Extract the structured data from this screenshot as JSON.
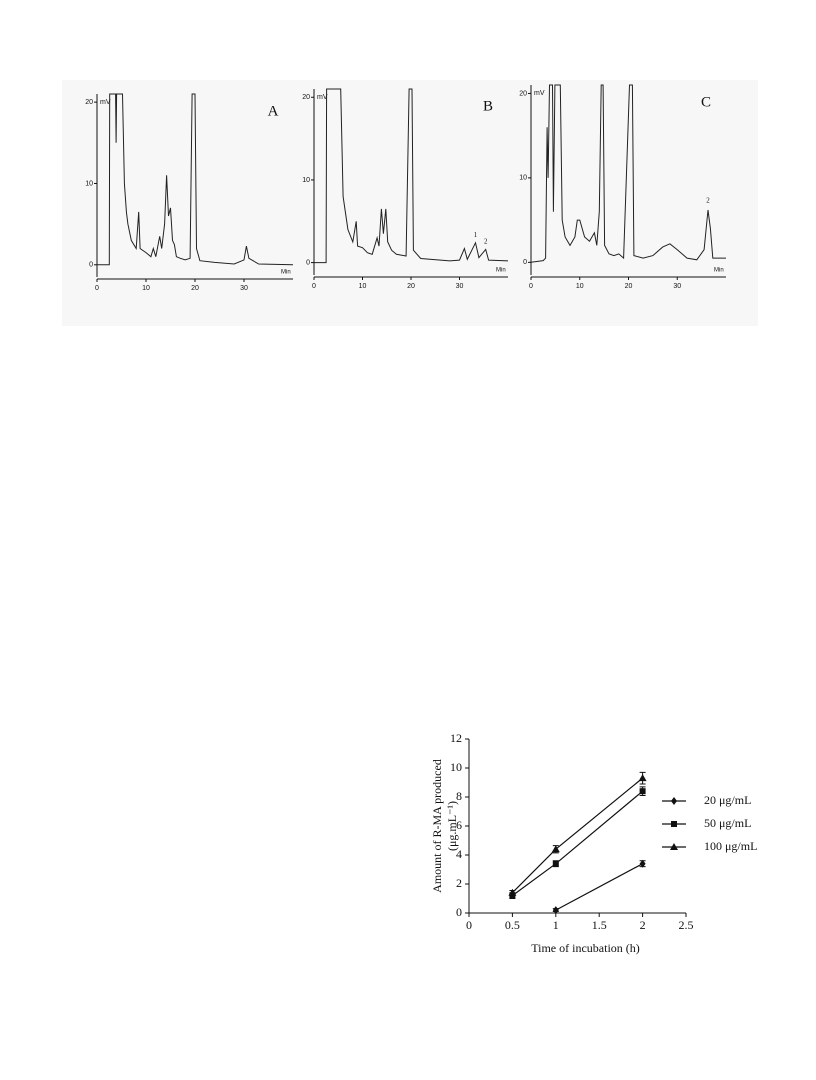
{
  "chart_data": [
    {
      "type": "chromatogram",
      "label": "A",
      "x_label": "Min",
      "y_label": "mV",
      "xlim": [
        0,
        40
      ],
      "ylim": [
        -1.5,
        21
      ],
      "xticks": [
        0,
        10,
        20,
        30
      ],
      "yticks": [
        0,
        10,
        20
      ],
      "color": "#222222",
      "x": [
        0,
        2.5,
        2.6,
        3.8,
        3.9,
        4.0,
        5.2,
        5.6,
        6,
        6.3,
        7,
        8,
        8.5,
        8.8,
        10,
        11,
        11.5,
        12,
        12.8,
        13.2,
        13.8,
        14.2,
        14.6,
        15,
        15.4,
        15.8,
        16.2,
        17,
        18,
        19,
        19.4,
        20,
        20.3,
        21,
        24,
        28,
        30,
        30.5,
        31,
        33,
        40
      ],
      "values": [
        0,
        0,
        21,
        21,
        15,
        21,
        21,
        10,
        6.5,
        5,
        3,
        2,
        6.5,
        2,
        1.5,
        1,
        2,
        1,
        3.5,
        2,
        5,
        11,
        6,
        7,
        3,
        2.5,
        1,
        0.8,
        0.6,
        0.8,
        21,
        21,
        2,
        0.5,
        0.3,
        0.1,
        0.6,
        2.3,
        0.8,
        0.1,
        0
      ],
      "annotations": []
    },
    {
      "type": "chromatogram",
      "label": "B",
      "x_label": "Min",
      "y_label": "mV",
      "xlim": [
        0,
        40
      ],
      "ylim": [
        -1.5,
        21
      ],
      "xticks": [
        0,
        10,
        20,
        30
      ],
      "yticks": [
        0,
        10,
        20
      ],
      "color": "#222222",
      "x": [
        0,
        2.5,
        2.6,
        4.4,
        4.6,
        5.5,
        6,
        6.5,
        7,
        8,
        8.7,
        9,
        10,
        11,
        12,
        13,
        13.4,
        13.9,
        14.3,
        14.8,
        15.2,
        16,
        17,
        19,
        19.6,
        20.2,
        20.5,
        22,
        28,
        30,
        31,
        31.6,
        33.3,
        34,
        35.4,
        36,
        40
      ],
      "values": [
        0,
        0,
        21,
        21,
        21,
        21,
        8,
        6,
        4,
        2.5,
        5,
        2,
        1.8,
        1.2,
        1,
        3,
        2,
        6.5,
        3.5,
        6.5,
        2.5,
        1.5,
        1,
        0.8,
        21,
        21,
        1.5,
        0.5,
        0.2,
        0.3,
        1.7,
        0.4,
        2.4,
        0.6,
        1.6,
        0.3,
        0.2
      ],
      "annotations": [
        {
          "text": "1",
          "x": 33.3,
          "y": 3.3
        },
        {
          "text": "2",
          "x": 35.4,
          "y": 2.5
        }
      ]
    },
    {
      "type": "chromatogram",
      "label": "C",
      "x_label": "Min",
      "y_label": "mV",
      "xlim": [
        0,
        40
      ],
      "ylim": [
        -1.5,
        21
      ],
      "xticks": [
        0,
        10,
        20,
        30
      ],
      "yticks": [
        0,
        10,
        20
      ],
      "color": "#222222",
      "x": [
        0,
        2.5,
        3,
        3.3,
        3.5,
        3.8,
        4.4,
        4.6,
        4.9,
        6,
        6.4,
        7,
        8,
        9,
        9.5,
        10,
        10.5,
        11,
        12,
        13,
        13.5,
        14,
        14.4,
        14.8,
        15.1,
        16,
        17,
        18,
        19,
        20.2,
        20.8,
        21.1,
        23,
        25,
        27,
        28.5,
        30,
        32,
        34,
        35.5,
        36.3,
        36.8,
        37.3,
        40
      ],
      "values": [
        0,
        0.2,
        0.5,
        16,
        10,
        21,
        21,
        6,
        21,
        21,
        5,
        3,
        2,
        3,
        5,
        5,
        4,
        3,
        2.5,
        3.5,
        2,
        6,
        21,
        21,
        2,
        1,
        0.8,
        1,
        0.5,
        21,
        21,
        0.8,
        0.5,
        0.8,
        1.8,
        2.2,
        1.5,
        0.5,
        0.3,
        1.5,
        6.2,
        4,
        0.5,
        0.5
      ],
      "annotations": [
        {
          "text": "2",
          "x": 36.3,
          "y": 7.3
        }
      ]
    },
    {
      "type": "line",
      "x_label": "Time of incubation (h)",
      "y_label": [
        "Amount of R-MA produced",
        "(μg.mL⁻¹)"
      ],
      "xlim": [
        0,
        2.5
      ],
      "ylim": [
        0,
        12
      ],
      "xticks": [
        0,
        0.5,
        1,
        1.5,
        2,
        2.5
      ],
      "yticks": [
        0,
        2,
        4,
        6,
        8,
        10,
        12
      ],
      "legend": "right",
      "series": [
        {
          "name": "20 μg/mL",
          "color": "#111111",
          "marker": "diamond",
          "x": [
            1,
            2
          ],
          "values": [
            0.2,
            3.4
          ],
          "errors": [
            0.1,
            0.2
          ]
        },
        {
          "name": "50 μg/mL",
          "color": "#111111",
          "marker": "square",
          "x": [
            0.5,
            1,
            2
          ],
          "values": [
            1.2,
            3.4,
            8.4
          ],
          "errors": [
            0.2,
            0.2,
            0.3
          ]
        },
        {
          "name": "100 μg/mL",
          "color": "#111111",
          "marker": "triangle",
          "x": [
            0.5,
            1,
            2
          ],
          "values": [
            1.4,
            4.4,
            9.3
          ],
          "errors": [
            0.15,
            0.25,
            0.4
          ]
        }
      ]
    }
  ]
}
